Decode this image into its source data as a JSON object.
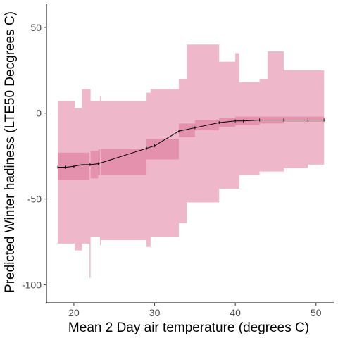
{
  "chart_data": {
    "type": "area",
    "title": "",
    "xlabel": "Mean 2 Day air temperature (degrees C)",
    "ylabel": "Predicted Winter hadiness (LTE50 Decgrees C)",
    "xlim": [
      16.6,
      52.2
    ],
    "ylim": [
      -110.5,
      63.5
    ],
    "x_ticks": [
      20,
      30,
      40,
      50
    ],
    "y_ticks": [
      -100,
      -50,
      0,
      50
    ],
    "grid": false,
    "legend": "none",
    "colors": {
      "outer_band": "#efb8ca",
      "inner_band": "#e491ad",
      "line": "#000000",
      "axis": "#000000",
      "tick_text": "#4d4d4d"
    },
    "outer_band": {
      "x": [
        18,
        20.1,
        21,
        22,
        23.3,
        29,
        29.5,
        33,
        34,
        38,
        40,
        40.5,
        43,
        44,
        46,
        49,
        51
      ],
      "upper": [
        7,
        3,
        14,
        7,
        7,
        12,
        14,
        20,
        40,
        30,
        35,
        18,
        20,
        36,
        25,
        25,
        23
      ],
      "lower": [
        -76,
        -80,
        -76,
        -72,
        -74,
        -78,
        -72,
        -64,
        -52,
        -44,
        -44,
        -36,
        -34,
        -34,
        -32,
        -30,
        -29
      ]
    },
    "inner_band": {
      "x": [
        18,
        20,
        22,
        23,
        29,
        33,
        35,
        38,
        40,
        43,
        46,
        49,
        51
      ],
      "upper": [
        -23,
        -23,
        -22,
        -21,
        -15,
        -6,
        -4,
        -3,
        -2,
        -2,
        -2,
        -2,
        -2
      ],
      "lower": [
        -39,
        -39,
        -38,
        -36,
        -27,
        -14,
        -10,
        -8,
        -7,
        -6,
        -5,
        -5,
        -5
      ]
    },
    "series": [
      {
        "x": [
          18,
          19,
          20,
          21,
          22,
          23,
          29,
          30,
          33,
          35,
          38,
          40,
          41,
          43,
          46,
          49,
          51
        ],
        "y": [
          -31.5,
          -31.5,
          -31,
          -30,
          -30,
          -29.5,
          -20.5,
          -19,
          -10.5,
          -8.5,
          -5.5,
          -4.5,
          -4.5,
          -4,
          -4,
          -4,
          -4
        ]
      }
    ],
    "spikes": [
      {
        "x": 22,
        "low": -96,
        "high": 14
      },
      {
        "x": 23.3,
        "low": -77,
        "high": 10
      }
    ]
  }
}
